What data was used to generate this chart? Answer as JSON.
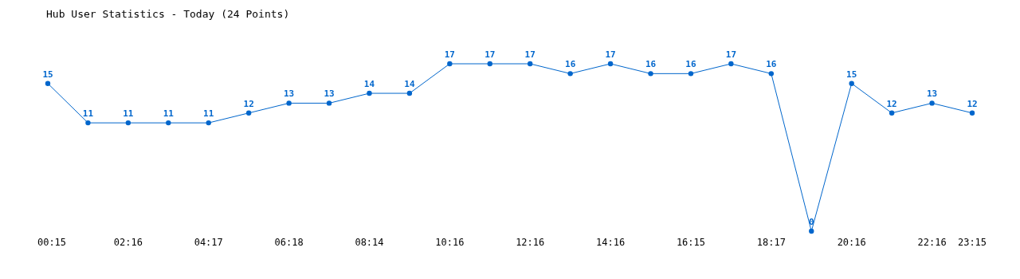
{
  "chart_data": {
    "type": "line",
    "title": "Hub User Statistics - Today (24 Points)",
    "categories": [
      "00:15",
      null,
      "02:16",
      null,
      "04:17",
      null,
      "06:18",
      null,
      "08:14",
      null,
      "10:16",
      null,
      "12:16",
      null,
      "14:16",
      null,
      "16:15",
      null,
      "18:17",
      null,
      "20:16",
      null,
      "22:16",
      "23:15"
    ],
    "series": [
      {
        "color": "#0066cc",
        "values": [
          15,
          11,
          11,
          11,
          11,
          12,
          13,
          13,
          14,
          14,
          17,
          17,
          17,
          16,
          17,
          16,
          16,
          17,
          16,
          0,
          15,
          12,
          13,
          12
        ]
      }
    ],
    "data_labels": true,
    "marker": "circle"
  }
}
